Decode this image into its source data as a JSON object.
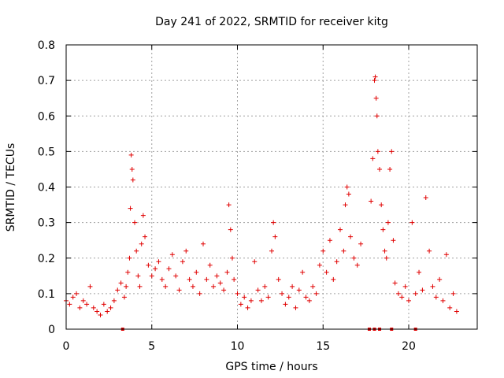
{
  "chart_data": {
    "type": "scatter",
    "title": "Day 241 of 2022, SRMTID for receiver kitg",
    "xlabel": "GPS time / hours",
    "ylabel": "SRMTID / TECUs",
    "xlim": [
      0,
      24
    ],
    "ylim": [
      0,
      0.8
    ],
    "xticks": [
      0,
      5,
      10,
      15,
      20
    ],
    "xtick_labels": [
      "0",
      "5",
      "10",
      "15",
      "20"
    ],
    "yticks": [
      0,
      0.1,
      0.2,
      0.3,
      0.4,
      0.5,
      0.6,
      0.7,
      0.8
    ],
    "ytick_labels": [
      "0",
      "0.1",
      "0.2",
      "0.3",
      "0.4",
      "0.5",
      "0.6",
      "0.7",
      "0.8"
    ],
    "grid": true,
    "marker": "+",
    "color": "#e00000",
    "series": [
      {
        "name": "SRMTID",
        "x": [
          0.0,
          0.2,
          0.4,
          0.6,
          0.8,
          1.0,
          1.2,
          1.4,
          1.6,
          1.8,
          2.0,
          2.2,
          2.4,
          2.6,
          2.8,
          3.0,
          3.2,
          3.4,
          3.5,
          3.6,
          3.7,
          3.75,
          3.8,
          3.85,
          3.9,
          4.0,
          4.1,
          4.2,
          4.3,
          4.4,
          4.5,
          4.6,
          4.8,
          5.0,
          5.2,
          5.4,
          5.6,
          5.8,
          6.0,
          6.2,
          6.4,
          6.6,
          6.8,
          7.0,
          7.2,
          7.4,
          7.6,
          7.8,
          8.0,
          8.2,
          8.4,
          8.6,
          8.8,
          9.0,
          9.2,
          9.4,
          9.5,
          9.6,
          9.7,
          9.8,
          10.0,
          10.2,
          10.4,
          10.6,
          10.8,
          11.0,
          11.2,
          11.4,
          11.6,
          11.8,
          12.0,
          12.1,
          12.2,
          12.4,
          12.6,
          12.8,
          13.0,
          13.2,
          13.4,
          13.6,
          13.8,
          14.0,
          14.2,
          14.4,
          14.6,
          14.8,
          15.0,
          15.2,
          15.4,
          15.6,
          15.8,
          16.0,
          16.2,
          16.3,
          16.4,
          16.5,
          16.6,
          16.8,
          17.0,
          17.2,
          17.8,
          17.9,
          18.0,
          18.05,
          18.1,
          18.15,
          18.2,
          18.3,
          18.4,
          18.5,
          18.6,
          18.7,
          18.8,
          18.9,
          19.0,
          19.1,
          19.2,
          19.4,
          19.6,
          19.8,
          20.0,
          20.2,
          20.4,
          20.6,
          20.8,
          21.0,
          21.2,
          21.4,
          21.6,
          21.8,
          22.0,
          22.2,
          22.4,
          22.6,
          22.8
        ],
        "y": [
          0.08,
          0.07,
          0.09,
          0.1,
          0.06,
          0.08,
          0.07,
          0.12,
          0.06,
          0.05,
          0.04,
          0.07,
          0.05,
          0.06,
          0.08,
          0.11,
          0.13,
          0.09,
          0.12,
          0.16,
          0.2,
          0.34,
          0.49,
          0.45,
          0.42,
          0.3,
          0.22,
          0.15,
          0.12,
          0.24,
          0.32,
          0.26,
          0.18,
          0.15,
          0.17,
          0.19,
          0.14,
          0.12,
          0.17,
          0.21,
          0.15,
          0.11,
          0.19,
          0.22,
          0.14,
          0.12,
          0.16,
          0.1,
          0.24,
          0.14,
          0.18,
          0.12,
          0.15,
          0.13,
          0.11,
          0.16,
          0.35,
          0.28,
          0.2,
          0.14,
          0.1,
          0.07,
          0.09,
          0.06,
          0.08,
          0.19,
          0.11,
          0.08,
          0.12,
          0.09,
          0.22,
          0.3,
          0.26,
          0.14,
          0.1,
          0.07,
          0.09,
          0.12,
          0.06,
          0.11,
          0.16,
          0.09,
          0.08,
          0.12,
          0.1,
          0.18,
          0.22,
          0.16,
          0.25,
          0.14,
          0.19,
          0.28,
          0.22,
          0.35,
          0.4,
          0.38,
          0.26,
          0.2,
          0.18,
          0.24,
          0.36,
          0.48,
          0.7,
          0.71,
          0.65,
          0.6,
          0.5,
          0.45,
          0.35,
          0.28,
          0.22,
          0.2,
          0.3,
          0.45,
          0.5,
          0.25,
          0.13,
          0.1,
          0.09,
          0.12,
          0.08,
          0.3,
          0.1,
          0.16,
          0.11,
          0.37,
          0.22,
          0.12,
          0.09,
          0.14,
          0.08,
          0.21,
          0.06,
          0.1,
          0.05
        ]
      }
    ],
    "gap_markers_x": [
      3.3,
      17.7,
      18.0,
      18.3,
      19.0,
      20.4
    ]
  }
}
